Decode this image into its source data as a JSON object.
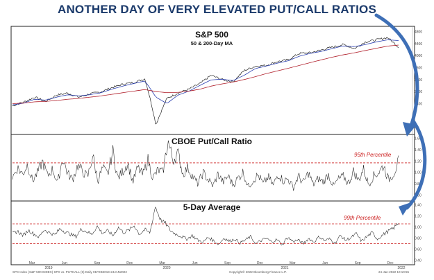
{
  "headline": "ANOTHER DAY OF VERY ELEVATED PUT/CALL RATIOS",
  "colors": {
    "price": "#222222",
    "ma50": "#2b3fb0",
    "ma200": "#b01e2a",
    "threshold": "#cc1f1f",
    "arrow": "#3e6fb6",
    "panel_border": "#222222"
  },
  "chart_data": [
    {
      "type": "line",
      "title": "S&P 500",
      "subtitle": "50 & 200-Day MA",
      "yscale": "log",
      "y_tick_labels": [
        "4800",
        "4400",
        "4000",
        "3600",
        "3200",
        "2800",
        "2400"
      ],
      "series": [
        {
          "name": "",
          "x": [
            "Feb-2019",
            "Mar-2019",
            "Apr-2019",
            "May-2019",
            "Jun-2019",
            "Jul-2019",
            "Aug-2019",
            "Sep-2019",
            "Oct-2019",
            "Nov-2019",
            "Dec-2019",
            "Jan-2020",
            "Feb-2020",
            "Mar-2020",
            "Apr-2020",
            "May-2020",
            "Jun-2020",
            "Jul-2020",
            "Aug-2020",
            "Sep-2020",
            "Oct-2020",
            "Nov-2020",
            "Dec-2020",
            "Jan-2021",
            "Feb-2021",
            "Mar-2021",
            "Apr-2021",
            "May-2021",
            "Jun-2021",
            "Jul-2021",
            "Aug-2021",
            "Sep-2021",
            "Oct-2021",
            "Nov-2021",
            "Dec-2021",
            "Jan-2022"
          ],
          "values": [
            2700,
            2780,
            2900,
            2800,
            2950,
            3000,
            2900,
            2980,
            3030,
            3140,
            3230,
            3280,
            3380,
            2300,
            2870,
            3000,
            3100,
            3250,
            3480,
            3360,
            3300,
            3620,
            3750,
            3780,
            3900,
            3960,
            4180,
            4200,
            4300,
            4400,
            4500,
            4350,
            4600,
            4680,
            4770,
            4400
          ]
        },
        {
          "name": "",
          "values": [
            2720,
            2760,
            2850,
            2830,
            2900,
            2960,
            2930,
            2960,
            3010,
            3100,
            3180,
            3250,
            3320,
            2900,
            2750,
            2950,
            3050,
            3200,
            3350,
            3370,
            3330,
            3480,
            3680,
            3760,
            3850,
            3930,
            4080,
            4180,
            4250,
            4350,
            4450,
            4420,
            4500,
            4600,
            4680,
            4650
          ]
        },
        {
          "name": "",
          "values": [
            2750,
            2760,
            2790,
            2800,
            2820,
            2850,
            2870,
            2900,
            2930,
            2970,
            3010,
            3050,
            3090,
            3040,
            3010,
            3020,
            3050,
            3100,
            3180,
            3240,
            3290,
            3360,
            3440,
            3530,
            3610,
            3690,
            3780,
            3870,
            3960,
            4050,
            4130,
            4200,
            4280,
            4360,
            4440,
            4480
          ]
        }
      ]
    },
    {
      "type": "line",
      "title": "CBOE Put/Call Ratio",
      "y_tick_labels": [
        "1.60",
        "1.40",
        "1.20",
        "1.00",
        "0.80",
        "0.60"
      ],
      "ylim": [
        0.4,
        1.7
      ],
      "threshold": {
        "label": "95th Percentile",
        "value": 1.15
      },
      "series": [
        {
          "name": "",
          "x_start": "Feb-2019",
          "x_end": "Jan-2022",
          "values": [
            0.85,
            1.05,
            0.92,
            1.12,
            0.78,
            0.95,
            1.18,
            0.88,
            1.02,
            0.74,
            1.25,
            0.93,
            0.81,
            1.1,
            0.97,
            0.86,
            1.3,
            0.79,
            1.04,
            0.91,
            1.4,
            0.83,
            0.98,
            1.15,
            0.76,
            1.05,
            0.9,
            1.22,
            0.84,
            1.0,
            0.95,
            1.6,
            1.2,
            1.35,
            0.92,
            1.05,
            0.86,
            0.72,
            0.95,
            0.81,
            0.68,
            0.92,
            0.75,
            0.88,
            0.7,
            0.84,
            0.96,
            0.66,
            0.8,
            0.9,
            0.72,
            0.86,
            0.69,
            0.93,
            0.78,
            0.82,
            0.64,
            0.88,
            0.74,
            0.95,
            0.7,
            0.83,
            0.76,
            0.92,
            0.67,
            0.81,
            0.87,
            0.73,
            0.98,
            0.79,
            1.02,
            0.71,
            0.88,
            0.95,
            1.1,
            0.8,
            0.93,
            1.18
          ]
        }
      ]
    },
    {
      "type": "line",
      "title": "5-Day Average",
      "y_tick_labels": [
        "1.40",
        "1.20",
        "1.00",
        "0.80",
        "0.60",
        "0.40"
      ],
      "ylim": [
        0.4,
        1.45
      ],
      "threshold": {
        "label": "99th Percentile",
        "value": 1.08
      },
      "series": [
        {
          "name": "",
          "x_start": "Feb-2019",
          "x_end": "Jan-2022",
          "values": [
            0.92,
            0.95,
            0.88,
            0.97,
            0.91,
            0.85,
            0.98,
            0.93,
            0.89,
            1.0,
            0.94,
            0.9,
            0.86,
            0.99,
            0.95,
            0.9,
            1.04,
            0.92,
            0.96,
            0.88,
            1.02,
            0.93,
            0.97,
            1.05,
            0.9,
            0.98,
            0.93,
            1.38,
            1.15,
            1.08,
            0.95,
            0.9,
            0.86,
            0.82,
            0.88,
            0.8,
            0.76,
            0.85,
            0.79,
            0.73,
            0.84,
            0.78,
            0.82,
            0.75,
            0.8,
            0.86,
            0.74,
            0.79,
            0.83,
            0.77,
            0.81,
            0.72,
            0.85,
            0.78,
            0.8,
            0.74,
            0.83,
            0.77,
            0.86,
            0.79,
            0.82,
            0.75,
            0.88,
            0.8,
            0.84,
            0.91,
            0.78,
            0.86,
            0.93,
            0.82,
            0.89,
            0.95,
            1.0,
            1.1
          ]
        }
      ]
    }
  ],
  "x_axis": {
    "months": [
      "Mar",
      "Jun",
      "Sep",
      "Dec",
      "Mar",
      "Jun",
      "Sep",
      "Dec",
      "Mar",
      "Jun",
      "Sep",
      "Dec"
    ],
    "years": [
      "2019",
      "2020",
      "2021",
      "2022"
    ]
  },
  "footer": {
    "left": "SPX Index (S&P 500 INDEX) SPX vs. PUTCALL (5)  Daily 01FEB2019-24JAN2022",
    "center": "Copyright© 2022 Bloomberg Finance L.P.",
    "right": "24-Jan-2022  10:10:55"
  }
}
